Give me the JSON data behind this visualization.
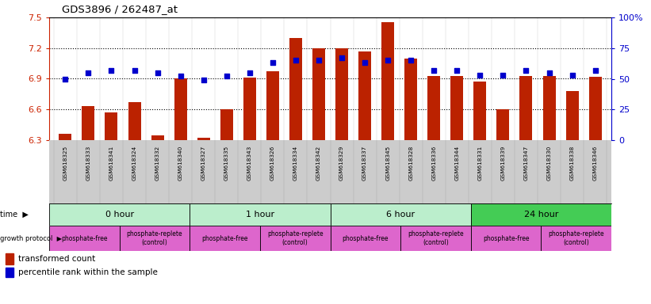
{
  "title": "GDS3896 / 262487_at",
  "samples": [
    "GSM618325",
    "GSM618333",
    "GSM618341",
    "GSM618324",
    "GSM618332",
    "GSM618340",
    "GSM618327",
    "GSM618335",
    "GSM618343",
    "GSM618326",
    "GSM618334",
    "GSM618342",
    "GSM618329",
    "GSM618337",
    "GSM618345",
    "GSM618328",
    "GSM618336",
    "GSM618344",
    "GSM618331",
    "GSM618339",
    "GSM618347",
    "GSM618330",
    "GSM618338",
    "GSM618346"
  ],
  "bar_values": [
    6.36,
    6.63,
    6.57,
    6.67,
    6.35,
    6.9,
    6.32,
    6.6,
    6.91,
    6.97,
    7.3,
    7.2,
    7.2,
    7.17,
    7.45,
    7.1,
    6.93,
    6.93,
    6.87,
    6.6,
    6.93,
    6.93,
    6.78,
    6.92
  ],
  "percentile_values": [
    50,
    55,
    57,
    57,
    55,
    52,
    49,
    52,
    55,
    63,
    65,
    65,
    67,
    63,
    65,
    65,
    57,
    57,
    53,
    53,
    57,
    55,
    53,
    57
  ],
  "ylim_left": [
    6.3,
    7.5
  ],
  "ylim_right": [
    0,
    100
  ],
  "yticks_left": [
    6.3,
    6.6,
    6.9,
    7.2,
    7.5
  ],
  "yticks_right": [
    0,
    25,
    50,
    75,
    100
  ],
  "ytick_labels_right": [
    "0",
    "25",
    "50",
    "75",
    "100%"
  ],
  "hlines": [
    6.6,
    6.9,
    7.2
  ],
  "bar_color": "#bb2200",
  "dot_color": "#0000cc",
  "bg_color": "#ffffff",
  "axis_color_left": "#cc2200",
  "axis_color_right": "#0000cc",
  "sample_band_color": "#cccccc",
  "time_colors": [
    "#bbeecc",
    "#bbeecc",
    "#bbeecc",
    "#44cc55"
  ],
  "time_labels": [
    "0 hour",
    "1 hour",
    "6 hour",
    "24 hour"
  ],
  "time_starts": [
    0,
    6,
    12,
    18
  ],
  "time_ends": [
    6,
    12,
    18,
    24
  ],
  "proto_labels": [
    "phosphate-free",
    "phosphate-replete\n(control)",
    "phosphate-free",
    "phosphate-replete\n(control)",
    "phosphate-free",
    "phosphate-replete\n(control)",
    "phosphate-free",
    "phosphate-replete\n(control)"
  ],
  "proto_starts": [
    0,
    3,
    6,
    9,
    12,
    15,
    18,
    21
  ],
  "proto_ends": [
    3,
    6,
    9,
    12,
    15,
    18,
    21,
    24
  ],
  "proto_color": "#dd66cc"
}
